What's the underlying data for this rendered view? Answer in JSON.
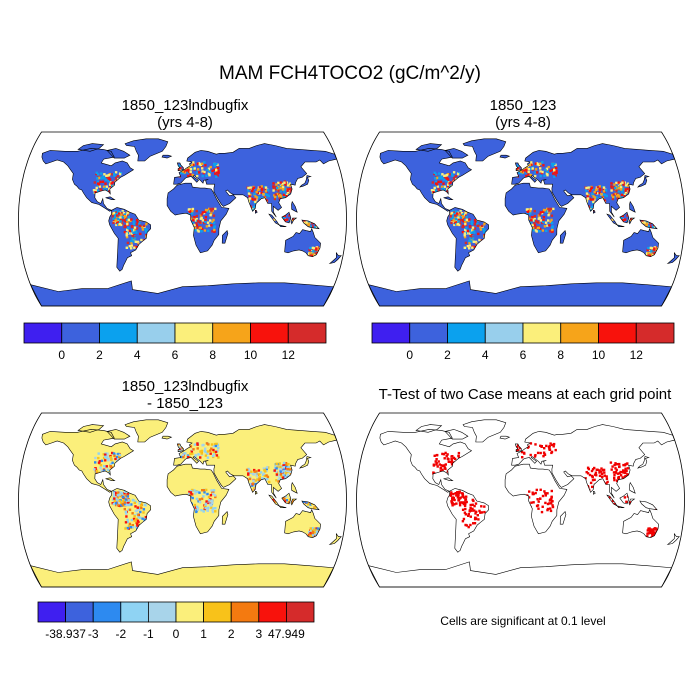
{
  "figure": {
    "title": "MAM FCH4TOCO2 (gC/m^2/y)"
  },
  "panels": {
    "top_left": {
      "title_line1": "1850_123lndbugfix",
      "title_line2": "(yrs 4-8)"
    },
    "top_right": {
      "title_line1": "1850_123",
      "title_line2": "(yrs 4-8)"
    },
    "bottom_left": {
      "title_line1": "1850_123lndbugfix",
      "title_line2": "- 1850_123"
    },
    "bottom_right": {
      "title_line1": "T-Test of two Case means at each grid point",
      "title_line2": ""
    }
  },
  "colorbars": {
    "top": {
      "colors": [
        "#3f1ff0",
        "#3d62dd",
        "#0ba1ee",
        "#98cfec",
        "#fbef7b",
        "#f6a41a",
        "#f8120c",
        "#d52b2b"
      ],
      "labels": [
        "0",
        "2",
        "4",
        "6",
        "8",
        "10",
        "12"
      ]
    },
    "diff": {
      "colors": [
        "#3f1ff0",
        "#3d62dd",
        "#2d8af0",
        "#8fd3f3",
        "#a8d4ea",
        "#fbef7b",
        "#f8c21a",
        "#f47a10",
        "#f8120c",
        "#d52b2b"
      ],
      "labels": [
        "-38.937",
        "-3",
        "-2",
        "-1",
        "0",
        "1",
        "2",
        "3",
        "47.949"
      ]
    }
  },
  "map_colors": {
    "ocean": "#ffffff",
    "land_low": "#3d62dd",
    "diff_land": "#fbef7b",
    "signif": "#f00000"
  },
  "ttest_note": "Cells are significant at 0.1 level"
}
